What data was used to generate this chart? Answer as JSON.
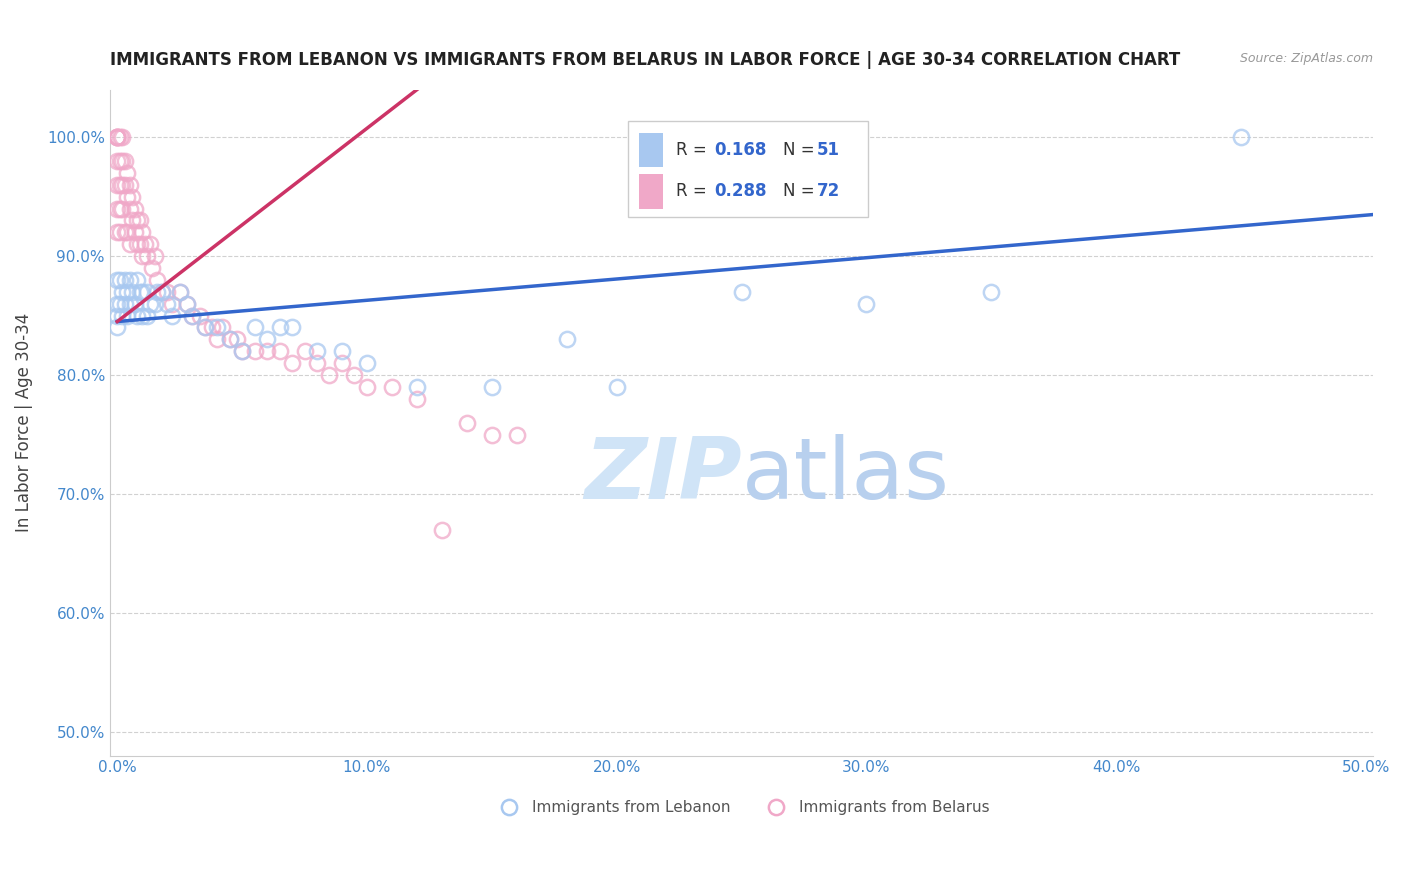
{
  "title": "IMMIGRANTS FROM LEBANON VS IMMIGRANTS FROM BELARUS IN LABOR FORCE | AGE 30-34 CORRELATION CHART",
  "source": "Source: ZipAtlas.com",
  "ylabel": "In Labor Force | Age 30-34",
  "xlim": [
    -0.003,
    0.503
  ],
  "ylim": [
    0.48,
    1.04
  ],
  "xticks": [
    0.0,
    0.1,
    0.2,
    0.3,
    0.4,
    0.5
  ],
  "yticks": [
    0.5,
    0.6,
    0.7,
    0.8,
    0.9,
    1.0
  ],
  "xtick_labels": [
    "0.0%",
    "10.0%",
    "20.0%",
    "30.0%",
    "40.0%",
    "50.0%"
  ],
  "ytick_labels": [
    "50.0%",
    "60.0%",
    "70.0%",
    "80.0%",
    "90.0%",
    "100.0%"
  ],
  "blue_color": "#a8c8f0",
  "pink_color": "#f0a8c8",
  "trendline_blue_color": "#3366cc",
  "trendline_pink_color": "#cc3366",
  "watermark_color": "#d0e4f7",
  "blue_r": "0.168",
  "blue_n": "51",
  "pink_r": "0.288",
  "pink_n": "72",
  "blue_trend_x0": 0.0,
  "blue_trend_x1": 0.503,
  "blue_trend_y0": 0.845,
  "blue_trend_y1": 0.935,
  "pink_trend_x0": 0.0,
  "pink_trend_x1": 0.12,
  "pink_trend_y0": 0.845,
  "pink_trend_y1": 1.04,
  "blue_x": [
    0.0,
    0.0,
    0.0,
    0.0,
    0.001,
    0.001,
    0.002,
    0.002,
    0.003,
    0.003,
    0.004,
    0.004,
    0.005,
    0.005,
    0.006,
    0.007,
    0.008,
    0.008,
    0.009,
    0.01,
    0.01,
    0.012,
    0.012,
    0.013,
    0.015,
    0.016,
    0.018,
    0.02,
    0.022,
    0.025,
    0.028,
    0.03,
    0.035,
    0.04,
    0.045,
    0.05,
    0.055,
    0.06,
    0.065,
    0.07,
    0.08,
    0.09,
    0.1,
    0.12,
    0.15,
    0.18,
    0.2,
    0.25,
    0.3,
    0.35,
    0.45
  ],
  "blue_y": [
    0.88,
    0.86,
    0.85,
    0.84,
    0.88,
    0.86,
    0.87,
    0.85,
    0.88,
    0.86,
    0.87,
    0.85,
    0.88,
    0.86,
    0.87,
    0.86,
    0.88,
    0.85,
    0.87,
    0.87,
    0.85,
    0.87,
    0.85,
    0.86,
    0.86,
    0.87,
    0.87,
    0.86,
    0.85,
    0.87,
    0.86,
    0.85,
    0.84,
    0.84,
    0.83,
    0.82,
    0.84,
    0.83,
    0.84,
    0.84,
    0.82,
    0.82,
    0.81,
    0.79,
    0.79,
    0.83,
    0.79,
    0.87,
    0.86,
    0.87,
    1.0
  ],
  "pink_x": [
    0.0,
    0.0,
    0.0,
    0.0,
    0.0,
    0.0,
    0.0,
    0.0,
    0.001,
    0.001,
    0.001,
    0.001,
    0.001,
    0.002,
    0.002,
    0.002,
    0.002,
    0.003,
    0.003,
    0.003,
    0.004,
    0.004,
    0.004,
    0.005,
    0.005,
    0.005,
    0.006,
    0.006,
    0.007,
    0.007,
    0.008,
    0.008,
    0.009,
    0.009,
    0.01,
    0.01,
    0.011,
    0.012,
    0.013,
    0.014,
    0.015,
    0.016,
    0.018,
    0.02,
    0.022,
    0.025,
    0.028,
    0.03,
    0.033,
    0.035,
    0.038,
    0.04,
    0.042,
    0.045,
    0.048,
    0.05,
    0.055,
    0.06,
    0.065,
    0.07,
    0.075,
    0.08,
    0.085,
    0.09,
    0.095,
    0.1,
    0.11,
    0.12,
    0.13,
    0.14,
    0.15,
    0.16
  ],
  "pink_y": [
    1.0,
    1.0,
    1.0,
    1.0,
    0.98,
    0.96,
    0.94,
    0.92,
    1.0,
    0.98,
    0.96,
    0.94,
    0.92,
    1.0,
    0.98,
    0.96,
    0.94,
    0.98,
    0.96,
    0.92,
    0.97,
    0.95,
    0.92,
    0.96,
    0.94,
    0.91,
    0.95,
    0.93,
    0.94,
    0.92,
    0.93,
    0.91,
    0.93,
    0.91,
    0.92,
    0.9,
    0.91,
    0.9,
    0.91,
    0.89,
    0.9,
    0.88,
    0.87,
    0.87,
    0.86,
    0.87,
    0.86,
    0.85,
    0.85,
    0.84,
    0.84,
    0.83,
    0.84,
    0.83,
    0.83,
    0.82,
    0.82,
    0.82,
    0.82,
    0.81,
    0.82,
    0.81,
    0.8,
    0.81,
    0.8,
    0.79,
    0.79,
    0.78,
    0.67,
    0.76,
    0.75,
    0.75
  ]
}
